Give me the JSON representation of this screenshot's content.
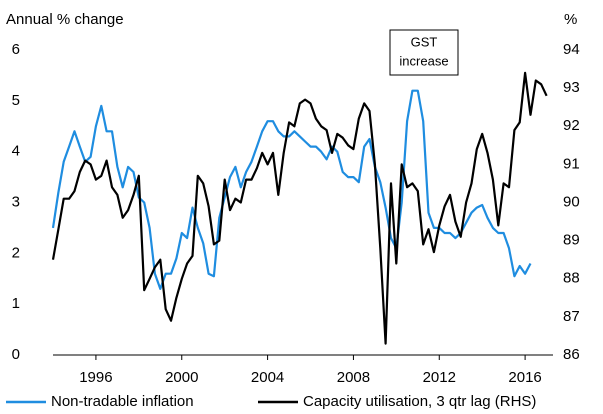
{
  "chart_data": {
    "type": "line",
    "y_label": "Annual % change",
    "y2_label": "%",
    "annotation": [
      "GST",
      "increase"
    ],
    "x": [
      1994,
      1994.25,
      1994.5,
      1994.75,
      1995,
      1995.25,
      1995.5,
      1995.75,
      1996,
      1996.25,
      1996.5,
      1996.75,
      1997,
      1997.25,
      1997.5,
      1997.75,
      1998,
      1998.25,
      1998.5,
      1998.75,
      1999,
      1999.25,
      1999.5,
      1999.75,
      2000,
      2000.25,
      2000.5,
      2000.75,
      2001,
      2001.25,
      2001.5,
      2001.75,
      2002,
      2002.25,
      2002.5,
      2002.75,
      2003,
      2003.25,
      2003.5,
      2003.75,
      2004,
      2004.25,
      2004.5,
      2004.75,
      2005,
      2005.25,
      2005.5,
      2005.75,
      2006,
      2006.25,
      2006.5,
      2006.75,
      2007,
      2007.25,
      2007.5,
      2007.75,
      2008,
      2008.25,
      2008.5,
      2008.75,
      2009,
      2009.25,
      2009.5,
      2009.75,
      2010,
      2010.25,
      2010.5,
      2010.75,
      2011,
      2011.25,
      2011.5,
      2011.75,
      2012,
      2012.25,
      2012.5,
      2012.75,
      2013,
      2013.25,
      2013.5,
      2013.75,
      2014,
      2014.25,
      2014.5,
      2014.75,
      2015,
      2015.25,
      2015.5,
      2015.75,
      2016,
      2016.25,
      2016.5,
      2016.75,
      2017
    ],
    "series": [
      {
        "name": "Non-tradable inflation",
        "color": "#1f8de0",
        "axis": "y",
        "values": [
          2.5,
          3.2,
          3.8,
          4.1,
          4.4,
          4.1,
          3.8,
          3.9,
          4.5,
          4.9,
          4.4,
          4.4,
          3.7,
          3.3,
          3.7,
          3.6,
          3.1,
          3.0,
          2.5,
          1.6,
          1.3,
          1.6,
          1.6,
          1.9,
          2.4,
          2.3,
          2.9,
          2.5,
          2.2,
          1.6,
          1.55,
          2.7,
          3.1,
          3.5,
          3.7,
          3.3,
          3.6,
          3.8,
          4.1,
          4.4,
          4.6,
          4.6,
          4.4,
          4.3,
          4.3,
          4.4,
          4.3,
          4.2,
          4.1,
          4.1,
          4.0,
          3.85,
          4.1,
          4.0,
          3.6,
          3.5,
          3.5,
          3.4,
          4.1,
          4.25,
          3.7,
          3.4,
          2.9,
          2.3,
          2.1,
          3.0,
          4.6,
          5.2,
          5.2,
          4.6,
          2.8,
          2.5,
          2.5,
          2.4,
          2.4,
          2.3,
          2.4,
          2.6,
          2.8,
          2.9,
          2.95,
          2.7,
          2.5,
          2.4,
          2.4,
          2.1,
          1.55,
          1.75,
          1.6,
          1.8,
          null,
          null,
          null
        ]
      },
      {
        "name": "Capacity utilisation, 3 qtr lag (RHS)",
        "color": "#000000",
        "axis": "y2",
        "values": [
          88.5,
          89.3,
          90.1,
          90.1,
          90.3,
          90.8,
          91.1,
          91.0,
          90.6,
          90.7,
          91.1,
          90.4,
          90.2,
          89.6,
          89.8,
          90.2,
          90.7,
          87.7,
          88.0,
          88.3,
          88.5,
          87.2,
          86.9,
          87.5,
          88.0,
          88.4,
          88.6,
          90.7,
          90.5,
          89.9,
          88.9,
          89.0,
          90.6,
          89.8,
          90.1,
          90.0,
          90.6,
          90.6,
          90.9,
          91.3,
          91.0,
          91.3,
          90.2,
          91.3,
          92.1,
          92.0,
          92.6,
          92.7,
          92.6,
          92.2,
          92.0,
          91.9,
          91.3,
          91.8,
          91.7,
          91.5,
          91.4,
          92.2,
          92.6,
          92.4,
          91.0,
          88.8,
          86.3,
          90.5,
          88.4,
          91.0,
          90.4,
          90.5,
          90.3,
          88.9,
          89.3,
          88.7,
          89.4,
          89.9,
          90.2,
          89.5,
          89.1,
          90.0,
          90.5,
          91.4,
          91.8,
          91.3,
          90.6,
          89.4,
          90.5,
          90.4,
          91.9,
          92.1,
          93.4,
          92.3,
          93.2,
          93.1,
          92.8
        ]
      }
    ],
    "xlim": [
      1994,
      2017.3
    ],
    "xticks": [
      1996,
      2000,
      2004,
      2008,
      2012,
      2016
    ],
    "ylim": [
      0,
      6
    ],
    "yticks": [
      0,
      1,
      2,
      3,
      4,
      5,
      6
    ],
    "y2lim": [
      86,
      94
    ],
    "y2ticks": [
      86,
      87,
      88,
      89,
      90,
      91,
      92,
      93,
      94
    ],
    "legend": "bottom"
  }
}
